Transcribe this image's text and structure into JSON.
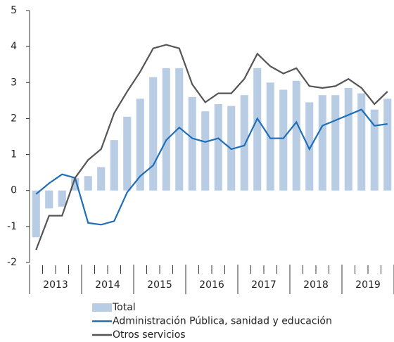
{
  "chart_data": {
    "type": "combo",
    "categories": [
      null,
      null,
      null,
      null,
      null,
      null,
      null,
      null,
      null,
      null,
      null,
      null,
      null,
      null,
      null,
      null,
      null,
      null,
      null,
      null,
      null,
      null,
      null,
      null,
      null,
      null,
      null,
      null
    ],
    "groups": [
      "2013",
      "2014",
      "2015",
      "2016",
      "2017",
      "2018",
      "2019"
    ],
    "ylim": [
      -2,
      5
    ],
    "yticks": [
      -2,
      -1,
      0,
      1,
      2,
      3,
      4,
      5
    ],
    "series": [
      {
        "name": "Total",
        "type": "bar",
        "color": "#b8cce4",
        "values": [
          -1.3,
          -0.5,
          -0.45,
          0.35,
          0.4,
          0.65,
          1.4,
          2.05,
          2.55,
          3.15,
          3.4,
          3.4,
          2.6,
          2.2,
          2.4,
          2.35,
          2.65,
          3.4,
          3.0,
          2.8,
          3.05,
          2.45,
          2.65,
          2.65,
          2.85,
          2.7,
          2.25,
          2.55
        ]
      },
      {
        "name": "Administración Pública, sanidad y educación",
        "type": "line",
        "color": "#1f6fb8",
        "values": [
          -0.1,
          0.2,
          0.45,
          0.35,
          -0.9,
          -0.95,
          -0.85,
          -0.05,
          0.4,
          0.7,
          1.4,
          1.75,
          1.45,
          1.35,
          1.45,
          1.15,
          1.25,
          2.0,
          1.45,
          1.45,
          1.9,
          1.15,
          1.8,
          1.95,
          2.1,
          2.25,
          1.8,
          1.85
        ]
      },
      {
        "name": "Otros servicios",
        "type": "line",
        "color": "#555555",
        "values": [
          -1.65,
          -0.7,
          -0.7,
          0.35,
          0.85,
          1.15,
          2.15,
          2.75,
          3.3,
          3.95,
          4.05,
          3.95,
          2.95,
          2.45,
          2.7,
          2.7,
          3.1,
          3.8,
          3.45,
          3.25,
          3.4,
          2.9,
          2.85,
          2.9,
          3.1,
          2.85,
          2.4,
          2.75
        ]
      }
    ]
  }
}
